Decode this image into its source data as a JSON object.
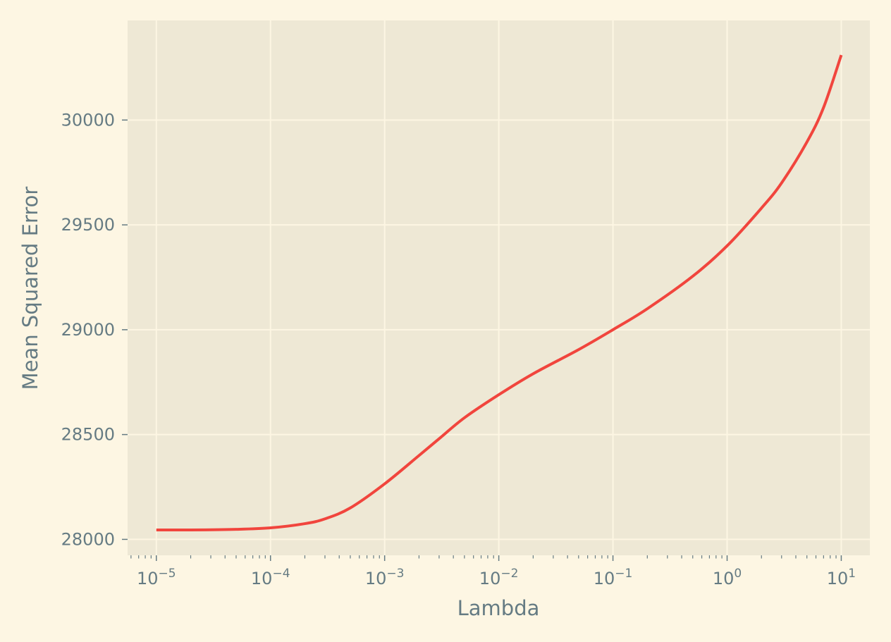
{
  "chart_data": {
    "type": "line",
    "title": "",
    "xlabel": "Lambda",
    "ylabel": "Mean Squared Error",
    "xscale": "log",
    "grid": true,
    "legend": "none",
    "xlim": [
      5.6e-06,
      17.8
    ],
    "ylim": [
      27924,
      30475
    ],
    "x_ticks": [
      {
        "value": 1e-05,
        "base": "10",
        "exp": "−5"
      },
      {
        "value": 0.0001,
        "base": "10",
        "exp": "−4"
      },
      {
        "value": 0.001,
        "base": "10",
        "exp": "−3"
      },
      {
        "value": 0.01,
        "base": "10",
        "exp": "−2"
      },
      {
        "value": 0.1,
        "base": "10",
        "exp": "−1"
      },
      {
        "value": 1,
        "base": "10",
        "exp": "0"
      },
      {
        "value": 10,
        "base": "10",
        "exp": "1"
      }
    ],
    "y_ticks": [
      {
        "value": 28000,
        "label": "28000"
      },
      {
        "value": 28500,
        "label": "28500"
      },
      {
        "value": 29000,
        "label": "29000"
      },
      {
        "value": 29500,
        "label": "29500"
      },
      {
        "value": 30000,
        "label": "30000"
      }
    ],
    "series": [
      {
        "color": "#f1453d",
        "x": [
          1e-05,
          2e-05,
          5e-05,
          0.0001,
          0.0002,
          0.0003,
          0.0005,
          0.001,
          0.002,
          0.003,
          0.005,
          0.01,
          0.02,
          0.05,
          0.1,
          0.2,
          0.5,
          1,
          2,
          3,
          5,
          7,
          10
        ],
        "y": [
          28045,
          28045,
          28048,
          28055,
          28075,
          28098,
          28150,
          28265,
          28400,
          28480,
          28580,
          28690,
          28790,
          28905,
          29000,
          29100,
          29255,
          29400,
          29580,
          29700,
          29895,
          30060,
          30310
        ]
      }
    ]
  },
  "colors": {
    "background": "#fdf6e3",
    "plot_area": "#eee8d5",
    "grid": "#fdf6e3",
    "text": "#657b83"
  }
}
